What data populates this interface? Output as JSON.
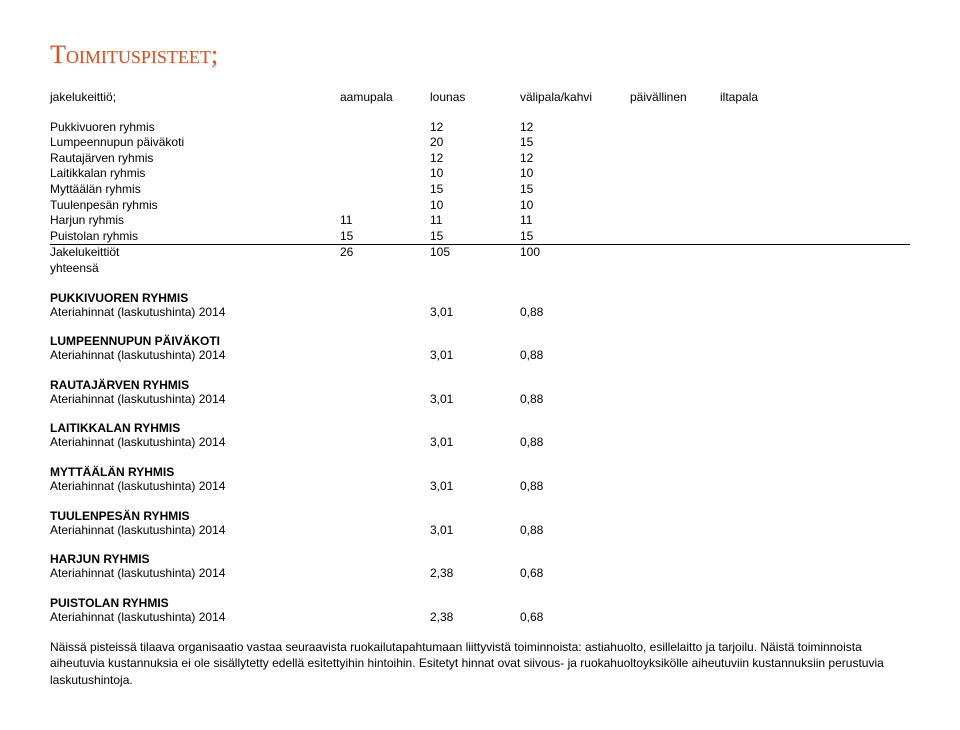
{
  "title": "Toimituspisteet;",
  "header": {
    "subtitle": "jakelukeittiö;",
    "cols": [
      "aamupala",
      "lounas",
      "välipala/kahvi",
      "päivällinen",
      "iltapala"
    ]
  },
  "deliveries": [
    {
      "label": "Pukkivuoren ryhmis",
      "a": "",
      "b": "12",
      "c": "12",
      "d": "",
      "e": ""
    },
    {
      "label": "Lumpeennupun päiväkoti",
      "a": "",
      "b": "20",
      "c": "15",
      "d": "",
      "e": ""
    },
    {
      "label": "Rautajärven ryhmis",
      "a": "",
      "b": "12",
      "c": "12",
      "d": "",
      "e": ""
    },
    {
      "label": "Laitikkalan ryhmis",
      "a": "",
      "b": "10",
      "c": "10",
      "d": "",
      "e": ""
    },
    {
      "label": "Myttäälän ryhmis",
      "a": "",
      "b": "15",
      "c": "15",
      "d": "",
      "e": ""
    },
    {
      "label": "Tuulenpesän ryhmis",
      "a": "",
      "b": "10",
      "c": "10",
      "d": "",
      "e": ""
    },
    {
      "label": "Harjun ryhmis",
      "a": "11",
      "b": "11",
      "c": "11",
      "d": "",
      "e": ""
    }
  ],
  "underlineRow": {
    "label": "Puistolan ryhmis",
    "a": "15",
    "b": "15",
    "c": "15",
    "d": "",
    "e": ""
  },
  "totalRow": {
    "label1": "Jakelukeittiöt",
    "label2": "yhteensä",
    "a": "26",
    "b": "105",
    "c": "100"
  },
  "sections": [
    {
      "heading": "PUKKIVUOREN RYHMIS",
      "sub": "Ateriahinnat (laskutushinta) 2014",
      "b": "3,01",
      "c": "0,88"
    },
    {
      "heading": "LUMPEENNUPUN PÄIVÄKOTI",
      "sub": "Ateriahinnat (laskutushinta) 2014",
      "b": "3,01",
      "c": "0,88"
    },
    {
      "heading": "RAUTAJÄRVEN RYHMIS",
      "sub": "Ateriahinnat (laskutushinta) 2014",
      "b": "3,01",
      "c": "0,88"
    },
    {
      "heading": "LAITIKKALAN RYHMIS",
      "sub": "Ateriahinnat (laskutushinta) 2014",
      "b": "3,01",
      "c": "0,88"
    },
    {
      "heading": "MYTTÄÄLÄN RYHMIS",
      "sub": "Ateriahinnat (laskutushinta) 2014",
      "b": "3,01",
      "c": "0,88"
    },
    {
      "heading": "TUULENPESÄN RYHMIS",
      "sub": "Ateriahinnat (laskutushinta) 2014",
      "b": "3,01",
      "c": "0,88"
    },
    {
      "heading": "HARJUN RYHMIS",
      "sub": "Ateriahinnat (laskutushinta) 2014",
      "b": "2,38",
      "c": "0,68"
    },
    {
      "heading": "PUISTOLAN RYHMIS",
      "sub": "Ateriahinnat (laskutushinta) 2014",
      "b": "2,38",
      "c": "0,68"
    }
  ],
  "footer": "Näissä pisteissä tilaava organisaatio vastaa seuraavista ruokailutapahtumaan liittyvistä toiminnoista: astiahuolto, esillelaitto ja tarjoilu. Näistä toiminnoista aiheutuvia kustannuksia ei ole sisällytetty edellä esitettyihin hintoihin. Esitetyt  hinnat ovat siivous- ja ruokahuoltoyksikölle aiheutuviin kustannuksiin perustuvia laskutushintoja."
}
